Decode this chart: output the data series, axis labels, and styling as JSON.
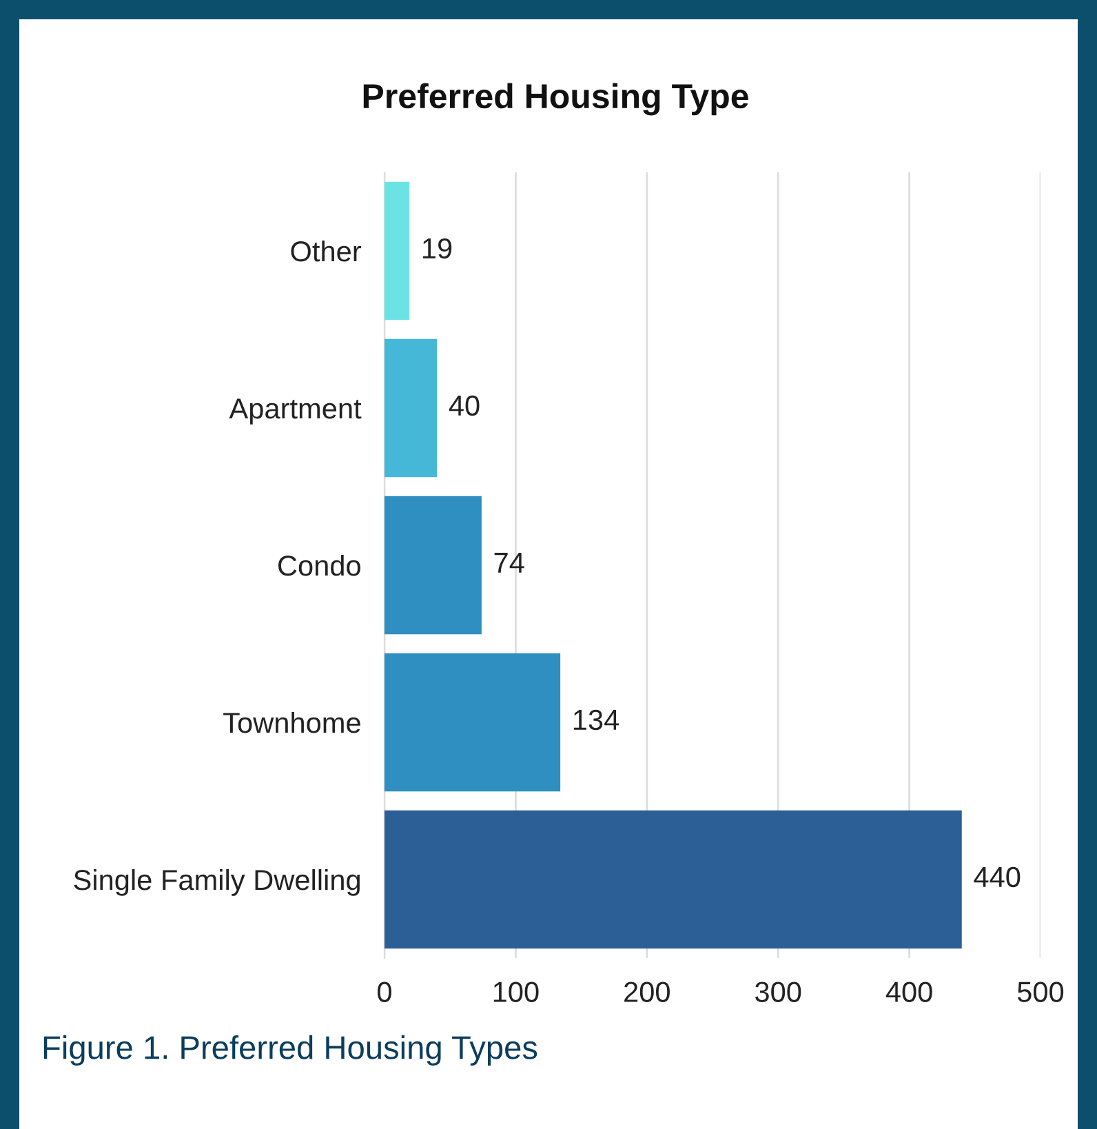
{
  "chart_data": {
    "type": "bar",
    "orientation": "horizontal",
    "title": "Preferred Housing Type",
    "categories": [
      "Other",
      "Apartment",
      "Condo",
      "Townhome",
      "Single Family Dwelling"
    ],
    "values": [
      19,
      40,
      74,
      134,
      440
    ],
    "colors": [
      "#6be3e4",
      "#45b8d8",
      "#2e8fc0",
      "#2e8fc0",
      "#2d5f97"
    ],
    "xlim": [
      0,
      500
    ],
    "xticks": [
      0,
      100,
      200,
      300,
      400,
      500
    ],
    "grid": "x",
    "data_labels": true,
    "annotations": [
      "Figure 1. Preferred Housing Types"
    ]
  }
}
